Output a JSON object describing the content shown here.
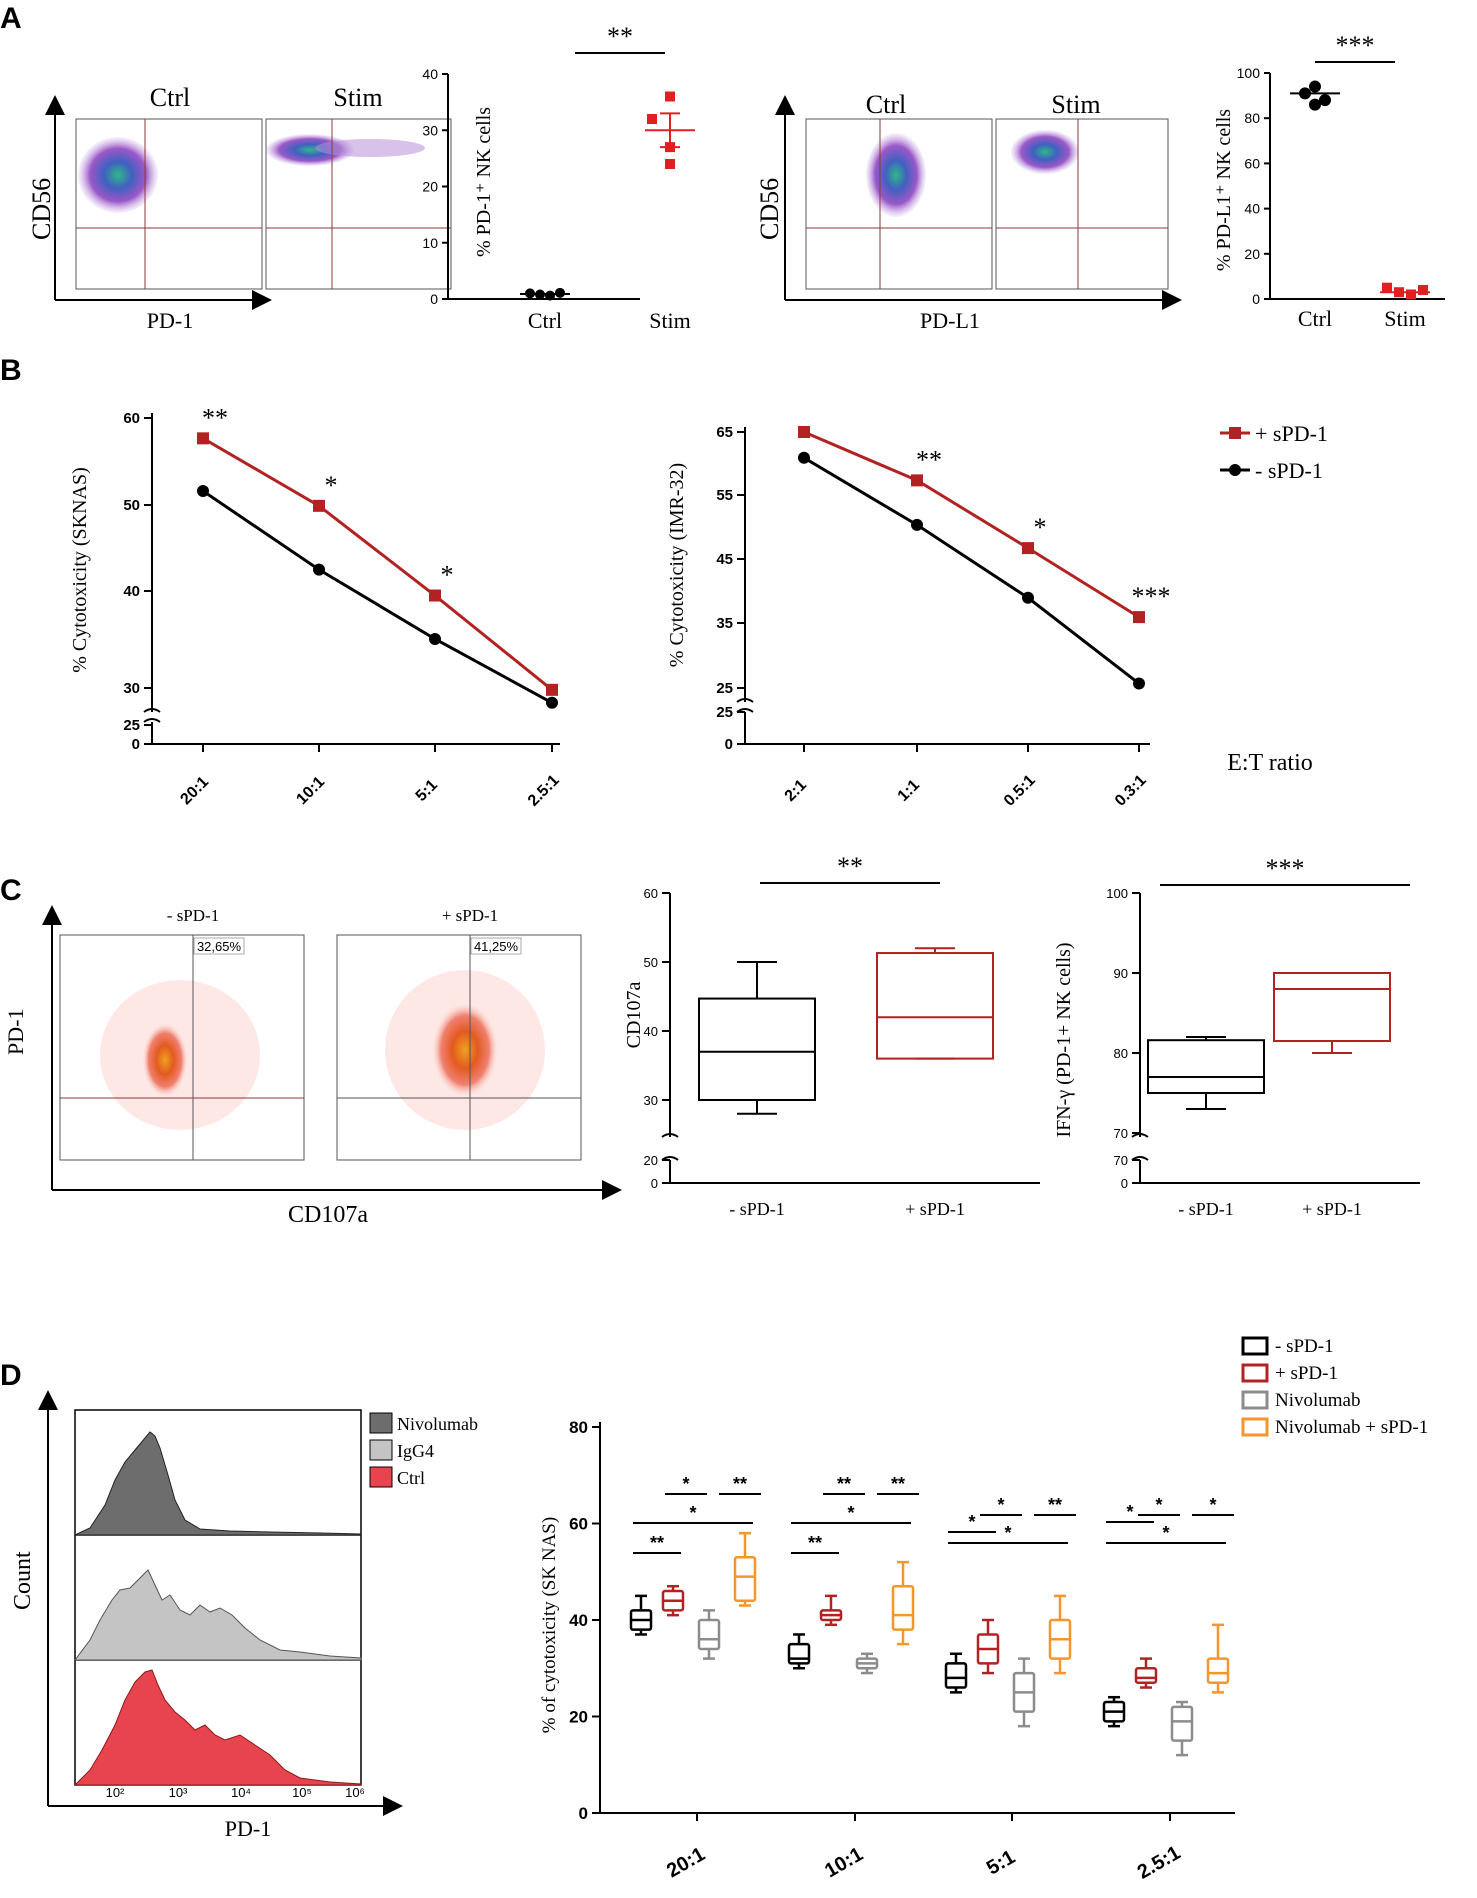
{
  "colors": {
    "black": "#000000",
    "red": "#b22222",
    "brightRed": "#e02020",
    "gray": "#8c8c8c",
    "orange": "#f5962a",
    "darkGray": "#6d6d6d",
    "lightGray": "#c4c4c4",
    "histRed": "#e8444f"
  },
  "panels": {
    "A": "A",
    "B": "B",
    "C": "C",
    "D": "D"
  },
  "panelA": {
    "flow1": {
      "ylabel": "CD56",
      "xlabel": "PD-1",
      "left": "Ctrl",
      "right": "Stim"
    },
    "flow2": {
      "ylabel": "CD56",
      "xlabel": "PD-L1",
      "left": "Ctrl",
      "right": "Stim"
    }
  },
  "panelC": {
    "flow": {
      "ylabel": "PD-1",
      "xlabel": "CD107a",
      "left_title": "- sPD-1",
      "right_title": "+ sPD-1",
      "left_gate": "32,65%",
      "right_gate": "41,25%"
    }
  },
  "panelD": {
    "histogram": {
      "ylabel": "Count",
      "xlabel": "PD-1",
      "legend": [
        "Nivolumab",
        "IgG4",
        "Ctrl"
      ],
      "ticks": [
        "10²",
        "10³",
        "10⁴",
        "10⁵",
        "10⁶"
      ]
    }
  },
  "chart_data": [
    {
      "id": "A-pd1",
      "type": "scatter",
      "ylabel": "% PD-1⁺ NK cells",
      "categories": [
        "Ctrl",
        "Stim"
      ],
      "ylim": [
        0,
        40
      ],
      "yticks": [
        "0",
        "10",
        "20",
        "30",
        "40"
      ],
      "series": [
        {
          "name": "Ctrl",
          "values": [
            1.0,
            0.8,
            0.6,
            1.1
          ],
          "mean": 0.9
        },
        {
          "name": "Stim",
          "values": [
            36,
            32,
            27,
            24
          ],
          "mean": 30
        }
      ],
      "significance": "**"
    },
    {
      "id": "A-pdl1",
      "type": "scatter",
      "ylabel": "% PD-L1⁺ NK cells",
      "categories": [
        "Ctrl",
        "Stim"
      ],
      "ylim": [
        0,
        100
      ],
      "yticks": [
        "0",
        "20",
        "40",
        "60",
        "80",
        "100"
      ],
      "series": [
        {
          "name": "Ctrl",
          "values": [
            94,
            91,
            88,
            86
          ],
          "mean": 91
        },
        {
          "name": "Stim",
          "values": [
            5,
            3,
            2,
            4
          ],
          "mean": 3
        }
      ],
      "significance": "***"
    },
    {
      "id": "B-sknas",
      "type": "line",
      "ylabel": "% Cytotoxicity (SKNAS)",
      "categories": [
        "20:1",
        "10:1",
        "5:1",
        "2.5:1"
      ],
      "yticks": [
        "0",
        "25",
        "30",
        "40",
        "50",
        "60"
      ],
      "series": [
        {
          "name": "+ sPD-1",
          "values": [
            57.8,
            50.5,
            40.8,
            30.6
          ]
        },
        {
          "name": "- sPD-1",
          "values": [
            52.1,
            43.6,
            36.1,
            29.2
          ]
        }
      ],
      "stars": [
        "**",
        "*",
        "*",
        ""
      ]
    },
    {
      "id": "B-imr32",
      "type": "line",
      "ylabel": "% Cytotoxicity (IMR-32)",
      "categories": [
        "2:1",
        "1:1",
        "0.5:1",
        "0.3:1"
      ],
      "yticks": [
        "0",
        "25",
        "25",
        "35",
        "45",
        "55",
        "65"
      ],
      "series": [
        {
          "name": "+ sPD-1",
          "values": [
            65,
            57.5,
            47,
            36.3
          ]
        },
        {
          "name": "- sPD-1",
          "values": [
            61,
            50.6,
            39.3,
            26
          ]
        }
      ],
      "stars": [
        "",
        "**",
        "*",
        "***"
      ],
      "legend": [
        "+ sPD-1",
        "- sPD-1"
      ],
      "xlabel": "E:T ratio"
    },
    {
      "id": "C-cd107a",
      "type": "box",
      "ylabel": "CD107a",
      "categories": [
        "- sPD-1",
        "+ sPD-1"
      ],
      "yticks": [
        "0",
        "20",
        "30",
        "40",
        "50",
        "60"
      ],
      "boxes": [
        {
          "min": 28,
          "q1": 30,
          "median": 37,
          "q3": 44.7,
          "max": 50
        },
        {
          "min": 36,
          "q1": 36,
          "median": 42,
          "q3": 51.3,
          "max": 52
        }
      ],
      "significance": "**"
    },
    {
      "id": "C-ifng",
      "type": "box",
      "ylabel": "IFN-γ (PD-1+ NK cells)",
      "categories": [
        "- sPD-1",
        "+ sPD-1"
      ],
      "yticks": [
        "0",
        "70",
        "70",
        "80",
        "90",
        "100"
      ],
      "boxes": [
        {
          "min": 73,
          "q1": 75,
          "median": 77,
          "q3": 81.6,
          "max": 82
        },
        {
          "min": 80,
          "q1": 81.5,
          "median": 88,
          "q3": 90,
          "max": 90
        }
      ],
      "significance": "***"
    },
    {
      "id": "D-box",
      "type": "box",
      "ylabel": "% of cytotoxicity (SK NAS)",
      "categories": [
        "20:1",
        "10:1",
        "5:1",
        "2.5:1"
      ],
      "ylim": [
        0,
        80
      ],
      "yticks": [
        "0",
        "20",
        "40",
        "60",
        "80"
      ],
      "legend": [
        "- sPD-1",
        "+ sPD-1",
        "Nivolumab",
        "Nivolumab + sPD-1"
      ],
      "groups": [
        [
          {
            "min": 37,
            "q1": 38,
            "median": 40,
            "q3": 42,
            "max": 45
          },
          {
            "min": 41,
            "q1": 42,
            "median": 44,
            "q3": 46,
            "max": 47
          },
          {
            "min": 32,
            "q1": 34,
            "median": 36,
            "q3": 40,
            "max": 42
          },
          {
            "min": 43,
            "q1": 44,
            "median": 49,
            "q3": 53,
            "max": 58
          }
        ],
        [
          {
            "min": 30,
            "q1": 31,
            "median": 32,
            "q3": 35,
            "max": 37
          },
          {
            "min": 39,
            "q1": 40,
            "median": 41,
            "q3": 42,
            "max": 45
          },
          {
            "min": 29,
            "q1": 30,
            "median": 31,
            "q3": 32,
            "max": 33
          },
          {
            "min": 35,
            "q1": 38,
            "median": 41,
            "q3": 47,
            "max": 52
          }
        ],
        [
          {
            "min": 25,
            "q1": 26,
            "median": 28,
            "q3": 31,
            "max": 33
          },
          {
            "min": 29,
            "q1": 31,
            "median": 34,
            "q3": 37,
            "max": 40
          },
          {
            "min": 18,
            "q1": 21,
            "median": 25,
            "q3": 29,
            "max": 32
          },
          {
            "min": 29,
            "q1": 32,
            "median": 36,
            "q3": 40,
            "max": 45
          }
        ],
        [
          {
            "min": 18,
            "q1": 19,
            "median": 21,
            "q3": 23,
            "max": 24
          },
          {
            "min": 26,
            "q1": 27,
            "median": 28,
            "q3": 30,
            "max": 32
          },
          {
            "min": 12,
            "q1": 15,
            "median": 19,
            "q3": 22,
            "max": 23
          },
          {
            "min": 25,
            "q1": 27,
            "median": 29,
            "q3": 32,
            "max": 39
          }
        ]
      ],
      "significance": [
        [
          {
            "label": "**",
            "pair": [
              0,
              1
            ]
          },
          {
            "label": "*",
            "pair": [
              0,
              3
            ]
          },
          {
            "label": "*",
            "pair": [
              1,
              2
            ]
          },
          {
            "label": "**",
            "pair": [
              2,
              3
            ]
          }
        ],
        [
          {
            "label": "**",
            "pair": [
              0,
              1
            ]
          },
          {
            "label": "*",
            "pair": [
              0,
              3
            ]
          },
          {
            "label": "**",
            "pair": [
              1,
              2
            ]
          },
          {
            "label": "**",
            "pair": [
              2,
              3
            ]
          }
        ],
        [
          {
            "label": "*",
            "pair": [
              0,
              1
            ]
          },
          {
            "label": "*",
            "pair": [
              0,
              3
            ]
          },
          {
            "label": "*",
            "pair": [
              1,
              2
            ]
          },
          {
            "label": "**",
            "pair": [
              2,
              3
            ]
          }
        ],
        [
          {
            "label": "*",
            "pair": [
              0,
              1
            ]
          },
          {
            "label": "*",
            "pair": [
              0,
              3
            ]
          },
          {
            "label": "*",
            "pair": [
              1,
              2
            ]
          },
          {
            "label": "*",
            "pair": [
              2,
              3
            ]
          }
        ]
      ]
    }
  ]
}
